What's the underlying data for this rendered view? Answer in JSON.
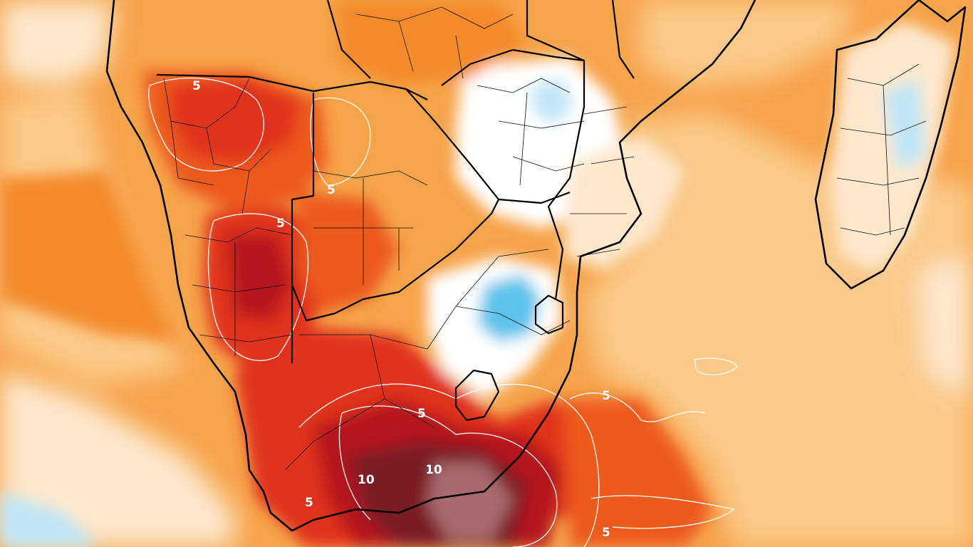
{
  "map": {
    "region": "Southern Africa and Madagascar",
    "variable_shown": "temperature anomaly",
    "colors": {
      "ocean_base": "#f6a44a",
      "light_orange": "#fbc98a",
      "pale": "#fde8cc",
      "white": "#ffffff",
      "light_blue": "#bfe6f5",
      "blue": "#5cc3ec",
      "orange": "#f48a2c",
      "red_orange": "#ec5a1e",
      "red": "#e0301a",
      "dark_red": "#b3131a",
      "maroon": "#7a1e28",
      "mauve": "#a86a70",
      "coast": "#000000",
      "contour": "#ffffff"
    },
    "contour_labels": [
      {
        "id": "5-namibia-north",
        "text": "5"
      },
      {
        "id": "5-botswana",
        "text": "5"
      },
      {
        "id": "5-namibia-central",
        "text": "5"
      },
      {
        "id": "5-lesotho",
        "text": "5"
      },
      {
        "id": "5-ocean-east",
        "text": "5"
      },
      {
        "id": "5-cape",
        "text": "5"
      },
      {
        "id": "5-ocean-southeast",
        "text": "5"
      },
      {
        "id": "10-karoo",
        "text": "10"
      },
      {
        "id": "10-eastern-cape",
        "text": "10"
      }
    ]
  }
}
